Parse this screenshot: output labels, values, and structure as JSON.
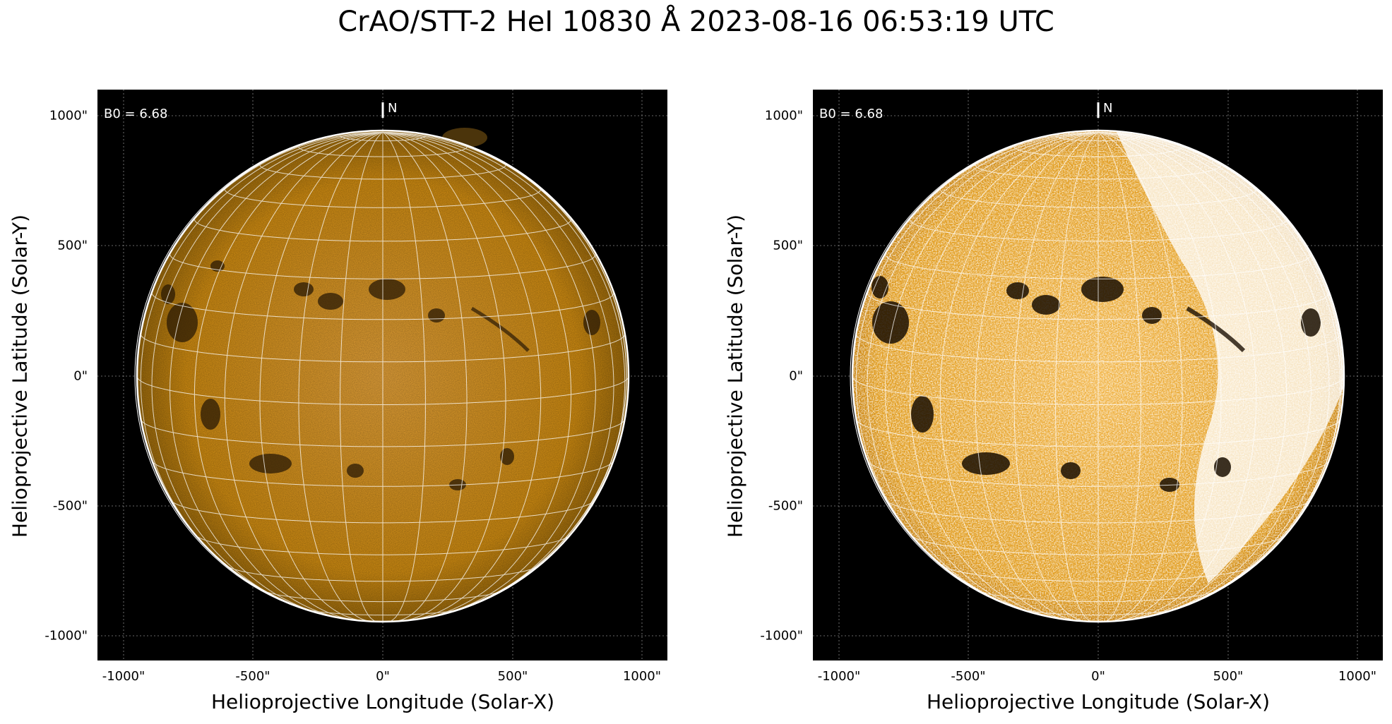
{
  "title": "CrAO/STT-2 HeI 10830 Å 2023-08-16 06:53:19 UTC",
  "panels": [
    {
      "b0_label": "B0 = 6.68",
      "north_label": "N",
      "xlabel": "Helioprojective Longitude (Solar-X)",
      "ylabel": "Helioprojective Latitude (Solar-Y)",
      "xticks": [
        "-1000\"",
        "-500\"",
        "0\"",
        "500\"",
        "1000\""
      ],
      "yticks": [
        "1000\"",
        "500\"",
        "0\"",
        "-500\"",
        "-1000\""
      ]
    },
    {
      "b0_label": "B0 = 6.68",
      "north_label": "N",
      "xlabel": "Helioprojective Longitude (Solar-X)",
      "ylabel": "Helioprojective Latitude (Solar-Y)",
      "xticks": [
        "-1000\"",
        "-500\"",
        "0\"",
        "500\"",
        "1000\""
      ],
      "yticks": [
        "1000\"",
        "500\"",
        "0\"",
        "-500\"",
        "-1000\""
      ]
    }
  ],
  "colors": {
    "sun_left": "#d9920f",
    "sun_right": "#e6a020",
    "background": "#000000",
    "grid": "#ffffff"
  }
}
